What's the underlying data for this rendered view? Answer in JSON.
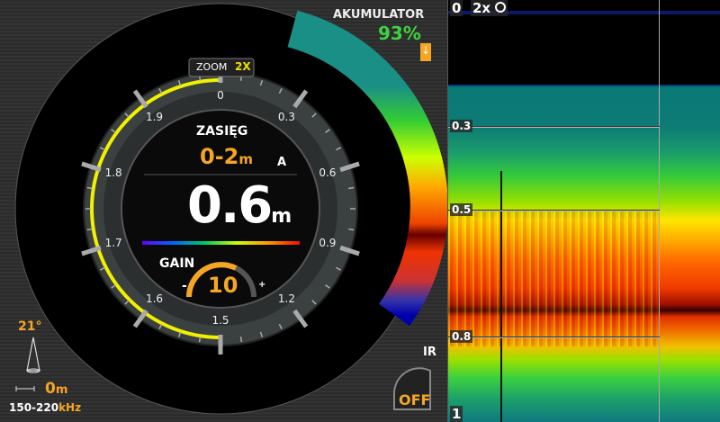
{
  "battery": {
    "label": "AKUMULATOR",
    "value": "93%",
    "color": "#3fd13f"
  },
  "dial": {
    "zoom_label": "ZOOM",
    "zoom_value": "2X",
    "scale": [
      "0",
      "0.3",
      "0.6",
      "0.9",
      "1.2",
      "1.5",
      "1.6",
      "1.7",
      "1.8",
      "1.9"
    ],
    "range_title": "ZASIĘG",
    "range_value": "0-2",
    "range_unit": "m",
    "range_mode": "A",
    "depth_value": "0.6",
    "depth_unit": "m",
    "gain_label": "GAIN",
    "gain_value": "10",
    "gain_minus": "-",
    "gain_plus": "+",
    "depth_fraction": 0.3
  },
  "beam": {
    "angle": "21°",
    "width_value": "0",
    "width_unit": "m",
    "freq": "150-220",
    "freq_unit": "kHz"
  },
  "ir": {
    "label": "IR",
    "state": "OFF"
  },
  "sonar": {
    "top_depth": "0",
    "zoom": "2x",
    "depth_marks": [
      "0.3",
      "0.5",
      "0.8"
    ],
    "bottom_depth": "1"
  },
  "colors": {
    "accent": "#f5a623",
    "yellow": "#f0f000"
  }
}
